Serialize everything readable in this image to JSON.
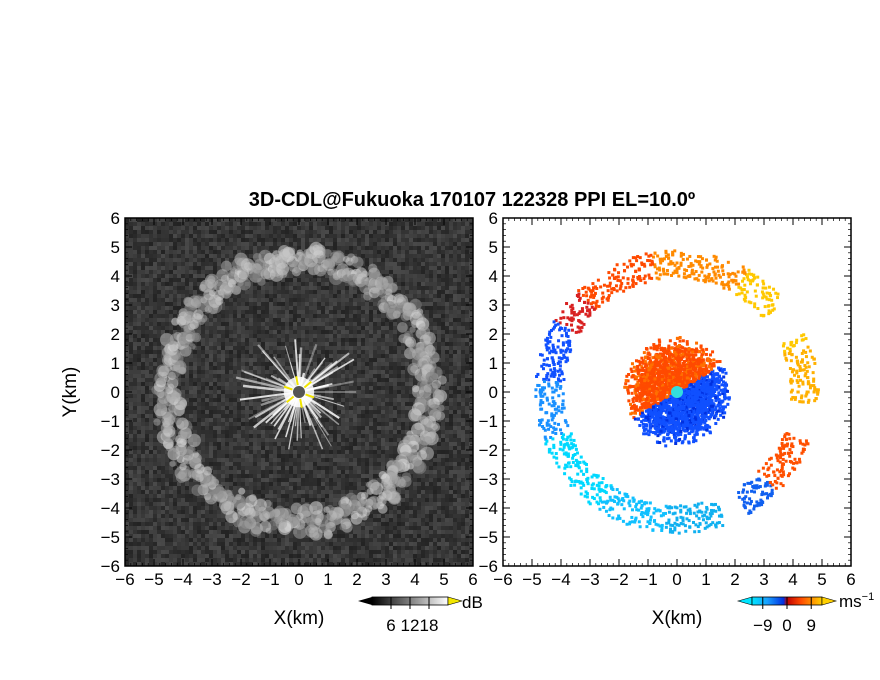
{
  "chart_data": [
    {
      "type": "heatmap",
      "panel": "left",
      "title": "3D-CDL@Fukuoka 170107 122328 PPI EL=10.0º",
      "xlabel": "X(km)",
      "ylabel": "Y(km)",
      "xlim": [
        -6,
        6
      ],
      "ylim": [
        -6,
        6
      ],
      "xticks": [
        "−6",
        "−5",
        "−4",
        "−3",
        "−2",
        "−1",
        "0",
        "1",
        "2",
        "3",
        "4",
        "5",
        "6"
      ],
      "yticks": [
        "6",
        "5",
        "4",
        "3",
        "2",
        "1",
        "0",
        "−1",
        "−2",
        "−3",
        "−4",
        "−5",
        "−6"
      ],
      "colormap": "grayscale",
      "colorbar": {
        "ticks": [
          "6",
          "12",
          "18"
        ],
        "unit": "dB",
        "range": [
          0,
          24
        ]
      },
      "features": {
        "ring_radius_km": 4.5,
        "ring_width_km": 0.8,
        "center_bright_radius_km": 1.5,
        "background_level_db": 3
      },
      "center_marker_color": "#555555",
      "spoke_color": "#f2e600"
    },
    {
      "type": "heatmap",
      "panel": "right",
      "xlabel": "X(km)",
      "xlim": [
        -6,
        6
      ],
      "ylim": [
        -6,
        6
      ],
      "xticks": [
        "−6",
        "−5",
        "−4",
        "−3",
        "−2",
        "−1",
        "0",
        "1",
        "2",
        "3",
        "4",
        "5",
        "6"
      ],
      "yticks": [
        "6",
        "5",
        "4",
        "3",
        "2",
        "1",
        "0",
        "−1",
        "−2",
        "−3",
        "−4",
        "−5",
        "−6"
      ],
      "colormap": "doppler-velocity",
      "colorbar": {
        "ticks": [
          "−9",
          "0",
          "9"
        ],
        "unit": "ms",
        "unit_exponent": "−1",
        "range": [
          -13,
          13
        ]
      },
      "features": {
        "ring_radius_km": 4.4,
        "center_patch_radius_km": 1.6
      },
      "center_marker_color": "#33dddd"
    }
  ]
}
